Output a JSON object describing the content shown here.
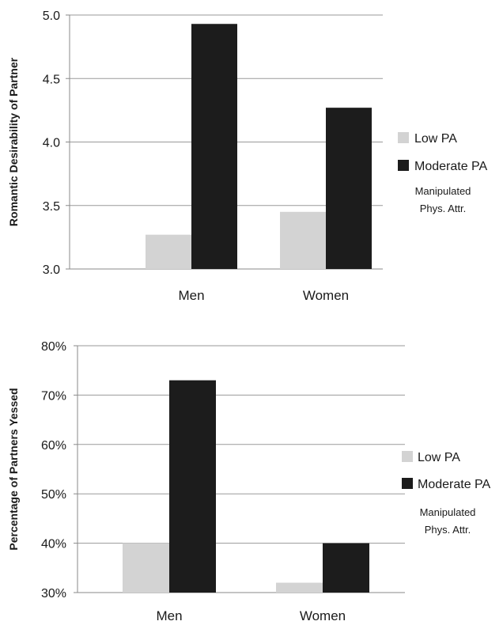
{
  "chart_data": [
    {
      "type": "bar",
      "categories": [
        "Men",
        "Women"
      ],
      "series": [
        {
          "name": "Low PA",
          "values": [
            3.27,
            3.45
          ],
          "color": "#d3d3d3"
        },
        {
          "name": "Moderate PA",
          "values": [
            4.93,
            4.27
          ],
          "color": "#1c1c1c"
        }
      ],
      "ylabel": "Romantic Desirability of Partner",
      "ylim": [
        3.0,
        5.0
      ],
      "yticks": [
        "3.0",
        "3.5",
        "4.0",
        "4.5",
        "5.0"
      ],
      "ytick_values": [
        3.0,
        3.5,
        4.0,
        4.5,
        5.0
      ],
      "legend_title": "Manipulated Phys. Attr.",
      "legend_position": "right",
      "grid": true
    },
    {
      "type": "bar",
      "categories": [
        "Men",
        "Women"
      ],
      "series": [
        {
          "name": "Low PA",
          "values": [
            40,
            32
          ],
          "color": "#d3d3d3"
        },
        {
          "name": "Moderate PA",
          "values": [
            73,
            40
          ],
          "color": "#1c1c1c"
        }
      ],
      "ylabel": "Percentage of Partners Yessed",
      "ylim": [
        30,
        80
      ],
      "yticks": [
        "30%",
        "40%",
        "50%",
        "60%",
        "70%",
        "80%"
      ],
      "ytick_values": [
        30,
        40,
        50,
        60,
        70,
        80
      ],
      "legend_title": "Manipulated Phys. Attr.",
      "legend_position": "right",
      "grid": true
    }
  ]
}
